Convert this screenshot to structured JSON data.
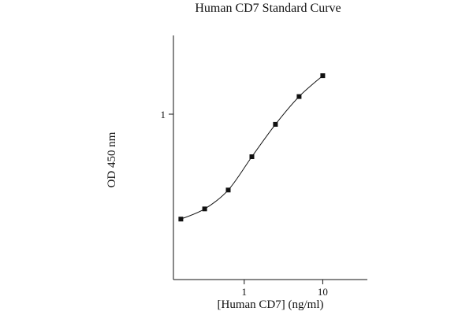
{
  "chart_data": {
    "type": "scatter",
    "title": "Human CD7 Standard Curve",
    "xlabel": "[Human CD7] (ng/ml)",
    "ylabel": "OD 450 nm",
    "x_scale": "log",
    "y_scale": "log",
    "xlim": [
      0.1,
      50
    ],
    "ylim": [
      0.1,
      3
    ],
    "x_ticks": [
      {
        "value": 1,
        "label": "1"
      },
      {
        "value": 10,
        "label": "10"
      }
    ],
    "y_ticks": [
      {
        "value": 1,
        "label": "1"
      }
    ],
    "grid": false,
    "legend": "none",
    "series": [
      {
        "x": [
          0.156,
          0.313,
          0.625,
          1.25,
          2.5,
          5,
          10
        ],
        "y": [
          0.147,
          0.177,
          0.25,
          0.46,
          0.83,
          1.38,
          2.02
        ]
      }
    ]
  }
}
